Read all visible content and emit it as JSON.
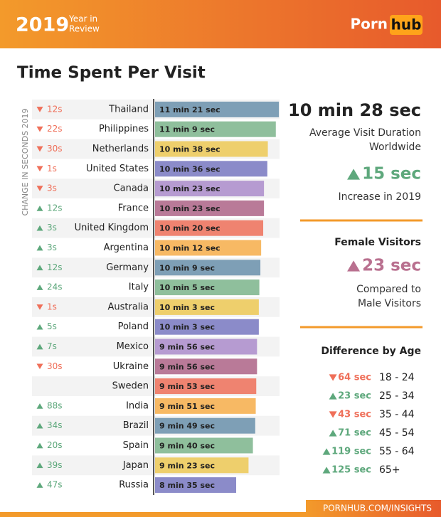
{
  "header": {
    "year": "2019",
    "year_in_review": [
      "Year in",
      "Review"
    ],
    "logo": [
      "Porn",
      "hub"
    ]
  },
  "chart_data": {
    "type": "bar",
    "title": "Time Spent Per Visit",
    "change_axis_label": "CHANGE IN SECONDS 2019",
    "categories": [
      "Thailand",
      "Philippines",
      "Netherlands",
      "United States",
      "Canada",
      "France",
      "United Kingdom",
      "Argentina",
      "Germany",
      "Italy",
      "Australia",
      "Poland",
      "Mexico",
      "Ukraine",
      "Sweden",
      "India",
      "Brazil",
      "Spain",
      "Japan",
      "Russia"
    ],
    "values": [
      681,
      669,
      638,
      636,
      623,
      623,
      620,
      612,
      609,
      605,
      603,
      603,
      596,
      596,
      593,
      591,
      589,
      580,
      563,
      515
    ],
    "value_labels": [
      "11 min 21 sec",
      "11 min 9 sec",
      "10 min 38 sec",
      "10 min 36 sec",
      "10 min 23 sec",
      "10 min 23 sec",
      "10 min 20 sec",
      "10 min 12 sec",
      "10 min 9 sec",
      "10 min 5 sec",
      "10 min 3 sec",
      "10 min 3 sec",
      "9 min 56 sec",
      "9 min 56 sec",
      "9 min 53 sec",
      "9 min 51 sec",
      "9 min 49 sec",
      "9 min 40 sec",
      "9 min 23 sec",
      "8 min 35 sec"
    ],
    "changes": [
      -12,
      -22,
      -30,
      -1,
      -3,
      12,
      3,
      3,
      12,
      24,
      -1,
      5,
      7,
      -30,
      null,
      88,
      34,
      20,
      39,
      47
    ],
    "change_labels": [
      "12s",
      "22s",
      "30s",
      "1s",
      "3s",
      "12s",
      "3s",
      "3s",
      "12s",
      "24s",
      "1s",
      "5s",
      "7s",
      "30s",
      null,
      "88s",
      "34s",
      "20s",
      "39s",
      "47s"
    ],
    "colors": [
      "#7e9fb6",
      "#8fbf9c",
      "#eecf6c",
      "#8b8bc9",
      "#b69bd1",
      "#b97a98",
      "#ef8370",
      "#f7b964",
      "#7e9fb6",
      "#8fbf9c",
      "#eecf6c",
      "#8b8bc9",
      "#b69bd1",
      "#b97a98",
      "#ef8370",
      "#f7b964",
      "#7e9fb6",
      "#8fbf9c",
      "#eecf6c",
      "#8b8bc9"
    ],
    "up_color": "#5ea87c",
    "down_color": "#ef6f59",
    "xlim": [
      200,
      700
    ]
  },
  "sidebar": {
    "avg_duration": "10 min 28 sec",
    "avg_caption": [
      "Average Visit Duration",
      "Worldwide"
    ],
    "increase": {
      "text": "15 sec",
      "direction": "up",
      "color": "#5ea87c"
    },
    "increase_caption": "Increase in 2019",
    "female_title": "Female Visitors",
    "female": {
      "text": "23 sec",
      "direction": "up",
      "color": "#b9708f"
    },
    "female_caption": [
      "Compared to",
      "Male Visitors"
    ],
    "age_title": "Difference by Age",
    "age_rows": [
      {
        "change": "64 sec",
        "direction": "down",
        "age": "18 - 24"
      },
      {
        "change": "23 sec",
        "direction": "up",
        "age": "25 - 34"
      },
      {
        "change": "43 sec",
        "direction": "down",
        "age": "35 - 44"
      },
      {
        "change": "71 sec",
        "direction": "up",
        "age": "45 - 54"
      },
      {
        "change": "119 sec",
        "direction": "up",
        "age": "55 - 64"
      },
      {
        "change": "125 sec",
        "direction": "up",
        "age": "65+"
      }
    ]
  },
  "footer": "PORNHUB.COM/INSIGHTS"
}
